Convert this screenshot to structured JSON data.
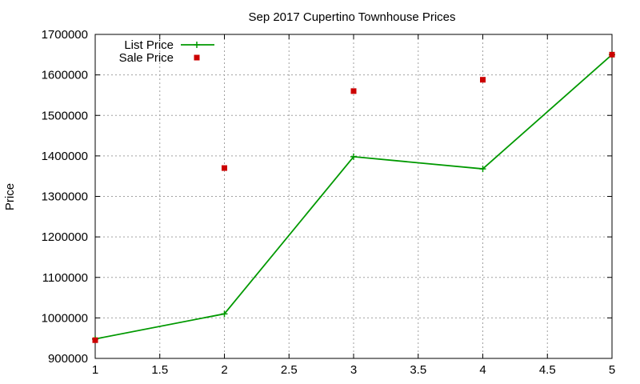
{
  "chart_data": {
    "type": "line",
    "title": "Sep 2017 Cupertino Townhouse Prices",
    "xlabel": "",
    "ylabel": "Price",
    "xlim": [
      1,
      5
    ],
    "ylim": [
      900000,
      1700000
    ],
    "xticks": [
      "1",
      "1.5",
      "2",
      "2.5",
      "3",
      "3.5",
      "4",
      "4.5",
      "5"
    ],
    "yticks": [
      "900000",
      "1000000",
      "1100000",
      "1200000",
      "1300000",
      "1400000",
      "1500000",
      "1600000",
      "1700000"
    ],
    "grid": true,
    "legend_position": "top-left",
    "series": [
      {
        "name": "List Price",
        "style": "line-with-plus-markers",
        "color": "#009900",
        "x": [
          1,
          2,
          3,
          4,
          5
        ],
        "y": [
          948000,
          1010000,
          1398000,
          1368000,
          1650000
        ]
      },
      {
        "name": "Sale Price",
        "style": "square-markers",
        "color": "#cc0000",
        "x": [
          1,
          2,
          3,
          4,
          5
        ],
        "y": [
          945000,
          1370000,
          1560000,
          1588000,
          1650000
        ]
      }
    ]
  }
}
